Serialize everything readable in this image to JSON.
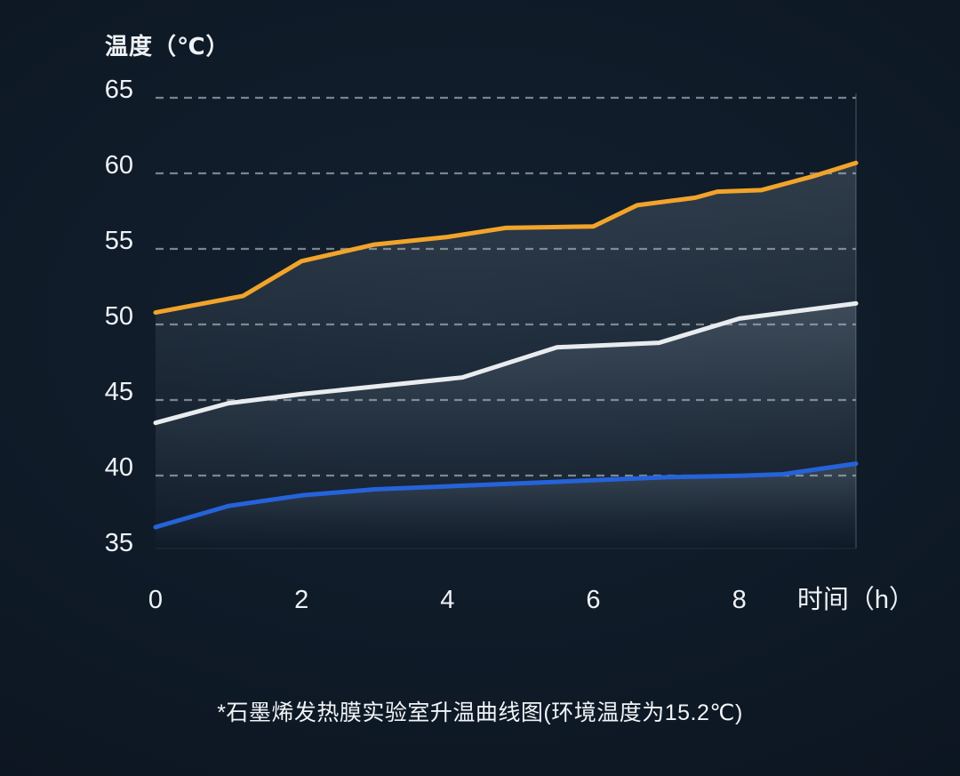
{
  "chart_data": {
    "type": "line",
    "title": "温度（℃）",
    "xlabel": "时间（h）",
    "ylabel": "温度（℃）",
    "caption": "*石墨烯发热膜实验室升温曲线图(环境温度为15.2℃)",
    "xlim": [
      0,
      9.6
    ],
    "ylim": [
      35,
      65
    ],
    "x_ticks": [
      0,
      2,
      4,
      6,
      8
    ],
    "y_ticks": [
      65,
      60,
      55,
      50,
      45,
      40,
      35
    ],
    "grid_values": [
      65,
      60,
      55,
      50,
      45,
      40
    ],
    "grid_on": true,
    "legend": "none",
    "grid_color": "#8e979f",
    "fill_color": "#9fb0c0",
    "text_color": "#eef2f6",
    "series": [
      {
        "name": "top-orange",
        "color": "#f2a42a",
        "x": [
          0,
          1.2,
          2,
          3,
          4,
          4.8,
          6,
          6.6,
          7.4,
          7.7,
          8.3,
          9,
          9.6
        ],
        "values": [
          50.2,
          51.3,
          53.6,
          54.7,
          55.2,
          55.8,
          55.9,
          57.3,
          57.8,
          58.2,
          58.3,
          59.2,
          60.1
        ]
      },
      {
        "name": "middle-white",
        "color": "#e9ecef",
        "x": [
          0,
          1,
          2,
          3,
          4.2,
          5.5,
          6,
          6.9,
          8,
          8.8,
          9.6
        ],
        "values": [
          42.9,
          44.2,
          44.8,
          45.3,
          45.9,
          47.9,
          48,
          48.2,
          49.8,
          50.3,
          50.8
        ]
      },
      {
        "name": "bottom-blue",
        "color": "#2563da",
        "x": [
          0,
          1,
          2,
          3,
          4,
          5,
          6,
          7,
          8,
          8.6,
          9.6
        ],
        "values": [
          36,
          37.4,
          38.1,
          38.5,
          38.7,
          38.9,
          39.1,
          39.3,
          39.4,
          39.5,
          40.2
        ]
      }
    ]
  }
}
